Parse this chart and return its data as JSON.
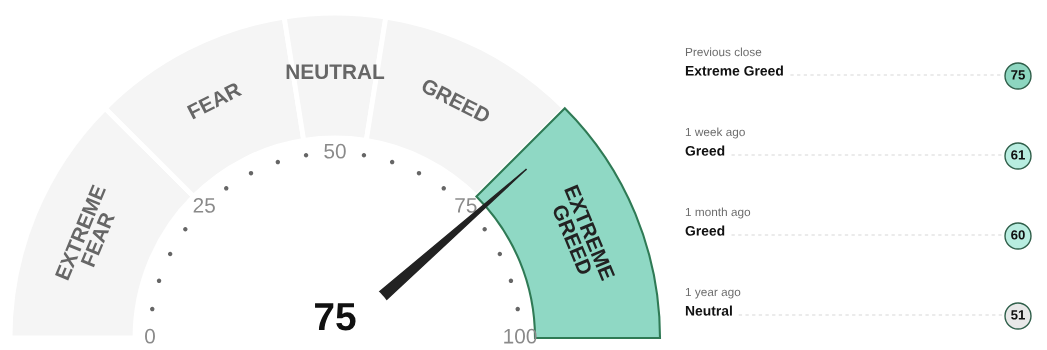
{
  "chart_data": [
    {
      "type": "donut",
      "categories": [
        "EXTREME FEAR",
        "FEAR",
        "NEUTRAL",
        "GREED",
        "EXTREME GREED"
      ],
      "values": [
        25,
        20,
        10,
        20,
        25
      ],
      "colors": [
        "#f5f5f5",
        "#f5f5f5",
        "#f5f5f5",
        "#f5f5f5",
        "#8fd8c4"
      ],
      "needle": "EXTREME GREED",
      "annotations": [
        "75",
        "0",
        "25",
        "50",
        "75",
        "100"
      ]
    },
    {
      "type": "other",
      "categories": [
        "Previous close",
        "1 week ago",
        "1 month ago",
        "1 year ago"
      ],
      "annotations": [
        "Extreme Greed",
        "Greed",
        "Greed",
        "Neutral"
      ],
      "values": [
        75,
        61,
        60,
        51
      ],
      "colors": [
        "#8dd6c0",
        "#b8ede0",
        "#b8ede0",
        "#e8e8e8"
      ],
      "data_labels": true
    }
  ]
}
